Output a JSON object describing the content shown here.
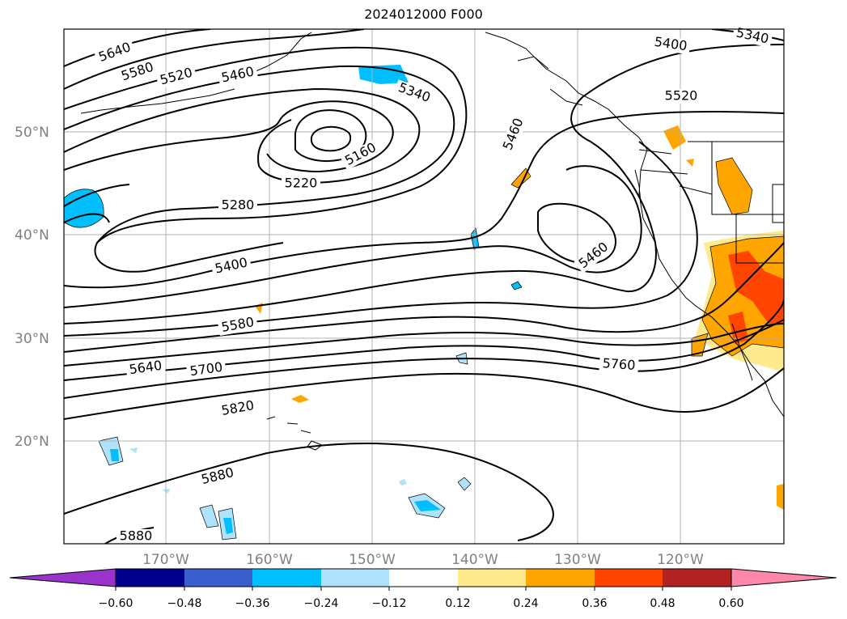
{
  "title": "2024012000 F000",
  "map": {
    "lat_labels": [
      {
        "text": "50°N",
        "lat": 50
      },
      {
        "text": "40°N",
        "lat": 40
      },
      {
        "text": "30°N",
        "lat": 30
      },
      {
        "text": "20°N",
        "lat": 20
      }
    ],
    "lon_labels": [
      {
        "text": "170°W",
        "lon": -170
      },
      {
        "text": "160°W",
        "lon": -160
      },
      {
        "text": "150°W",
        "lon": -150
      },
      {
        "text": "140°W",
        "lon": -140
      },
      {
        "text": "130°W",
        "lon": -130
      },
      {
        "text": "120°W",
        "lon": -120
      }
    ],
    "extent": {
      "lon_min": -180,
      "lon_max": -110,
      "lat_min": 10,
      "lat_max": 60
    },
    "contour_labels": [
      "5640",
      "5580",
      "5520",
      "5460",
      "5340",
      "5160",
      "5220",
      "5280",
      "5400",
      "5580",
      "5640",
      "5700",
      "5820",
      "5880",
      "5880",
      "5460",
      "5460",
      "5400",
      "5340",
      "5520",
      "5760"
    ],
    "fill_colors": {
      "neg_light": "#aee3fb",
      "neg": "#00bfff",
      "pos_light": "#ffea8e",
      "pos": "#ffa500",
      "pos_strong": "#ff4500"
    }
  },
  "colorbar": {
    "segments": [
      "#9933cc",
      "#00008b",
      "#3a5fcd",
      "#00bfff",
      "#aee3fb",
      "#ffffff",
      "#ffea8e",
      "#ffa500",
      "#ff4500",
      "#b22222",
      "#ff88aa"
    ],
    "ticks": [
      "−0.60",
      "−0.48",
      "−0.36",
      "−0.24",
      "−0.12",
      "0.12",
      "0.24",
      "0.36",
      "0.48",
      "0.60"
    ]
  }
}
